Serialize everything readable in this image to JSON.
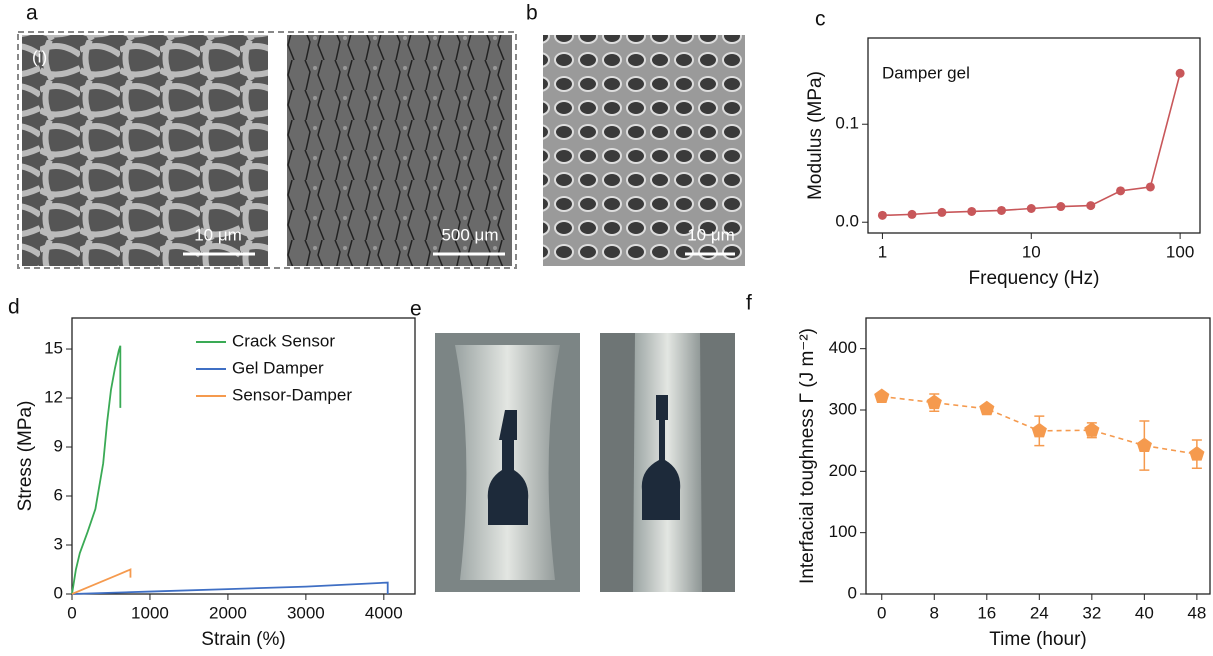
{
  "panels": {
    "a": {
      "label": "a",
      "inset": "(i)",
      "scale_bars": [
        "10 μm",
        "500 μm"
      ]
    },
    "b": {
      "label": "b",
      "scale_bar": "10 μm"
    },
    "c": {
      "label": "c"
    },
    "d": {
      "label": "d"
    },
    "e": {
      "label": "e"
    },
    "f": {
      "label": "f"
    }
  },
  "chart_data": [
    {
      "type": "line",
      "annotation": "Damper gel",
      "xlabel": "Frequency (Hz)",
      "ylabel": "Modulus (MPa)",
      "x": [
        1,
        1.58,
        2.51,
        3.98,
        6.31,
        10,
        15.8,
        25.1,
        39.8,
        63.1,
        100
      ],
      "values": [
        0.007,
        0.008,
        0.01,
        0.011,
        0.012,
        0.014,
        0.016,
        0.017,
        0.032,
        0.036,
        0.152
      ],
      "color": "#c8575a",
      "xscale": "log",
      "xlim": [
        0.8,
        136
      ],
      "xticks": [
        1,
        10,
        100
      ],
      "ylim": [
        -0.011,
        0.188
      ],
      "yticks": [
        {
          "value": 0,
          "label": "0.0"
        },
        0.1
      ]
    },
    {
      "type": "line",
      "xlabel": "Strain (%)",
      "ylabel": "Stress (MPa)",
      "legend": "upper right",
      "series": [
        {
          "name": "Crack Sensor",
          "color": "#3aaa55",
          "x": [
            0,
            50,
            100,
            200,
            300,
            400,
            450,
            500,
            550,
            600,
            620,
            620
          ],
          "values": [
            0,
            1.5,
            2.5,
            3.8,
            5.2,
            8,
            10.5,
            12.5,
            13.8,
            14.9,
            15.2,
            11.4
          ]
        },
        {
          "name": "Gel Damper",
          "color": "#3f6fc4",
          "x": [
            0,
            1000,
            2000,
            3000,
            4050,
            4050
          ],
          "values": [
            0,
            0.15,
            0.3,
            0.45,
            0.7,
            0
          ]
        },
        {
          "name": "Sensor-Damper",
          "color": "#f59a4e",
          "x": [
            0,
            200,
            400,
            600,
            750,
            750
          ],
          "values": [
            0,
            0.4,
            0.8,
            1.2,
            1.5,
            1.0
          ]
        }
      ],
      "xlim": [
        0,
        4400
      ],
      "xticks": [
        0,
        1000,
        2000,
        3000,
        4000
      ],
      "ylim": [
        0,
        16.9
      ],
      "yticks": [
        0,
        3,
        6,
        9,
        12,
        15
      ]
    },
    {
      "type": "errorbar",
      "xlabel": "Time (hour)",
      "ylabel": "Interfacial toughness Γ (J m⁻²)",
      "x": [
        0,
        8,
        16,
        24,
        32,
        40,
        48
      ],
      "values": [
        322,
        312,
        302,
        266,
        267,
        242,
        228
      ],
      "errors": [
        5,
        14,
        6,
        24,
        12,
        40,
        23
      ],
      "color": "#f59a4e",
      "xlim": [
        -2.4,
        50
      ],
      "xticks": [
        0,
        8,
        16,
        24,
        32,
        40,
        48
      ],
      "ylim": [
        0,
        450
      ],
      "yticks": [
        0,
        100,
        200,
        300,
        400
      ]
    }
  ]
}
